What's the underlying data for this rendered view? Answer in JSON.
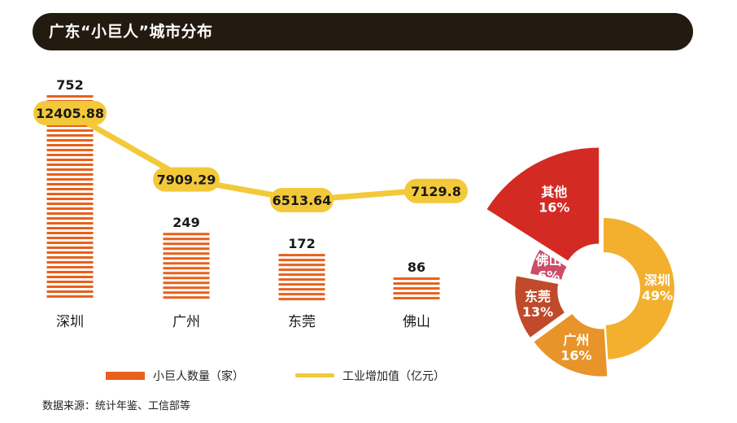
{
  "title": "广东“小巨人”城市分布",
  "chart_data": [
    {
      "type": "bar",
      "title": "广东“小巨人”城市分布",
      "categories": [
        "深圳",
        "广州",
        "东莞",
        "佛山"
      ],
      "series": [
        {
          "name": "小巨人数量（家）",
          "kind": "bar",
          "values": [
            752,
            249,
            172,
            86
          ]
        },
        {
          "name": "工业增加值（亿元）",
          "kind": "line",
          "values": [
            12405.88,
            7909.29,
            6513.64,
            7129.8
          ]
        }
      ],
      "value_labels": {
        "bar": [
          "752",
          "249",
          "172",
          "86"
        ],
        "line": [
          "12405.88",
          "7909.29",
          "6513.64",
          "7129.8"
        ]
      },
      "colors": {
        "bar": "#e8601c",
        "line": "#f3c93a"
      }
    },
    {
      "type": "pie",
      "style": "exploded-donut",
      "slices": [
        {
          "label": "深圳",
          "value": 49,
          "text": "49%",
          "color": "#f2b02e"
        },
        {
          "label": "广州",
          "value": 16,
          "text": "16%",
          "color": "#e8942a"
        },
        {
          "label": "东莞",
          "value": 13,
          "text": "13%",
          "color": "#c04a2a"
        },
        {
          "label": "佛山",
          "value": 6,
          "text": "6%",
          "color": "#cc4d67"
        },
        {
          "label": "其他",
          "value": 16,
          "text": "16%",
          "color": "#d42a24"
        }
      ]
    }
  ],
  "legend": {
    "bar_label": "小巨人数量（家）",
    "line_label": "工业增加值（亿元）"
  },
  "source": "数据来源：统计年鉴、工信部等"
}
